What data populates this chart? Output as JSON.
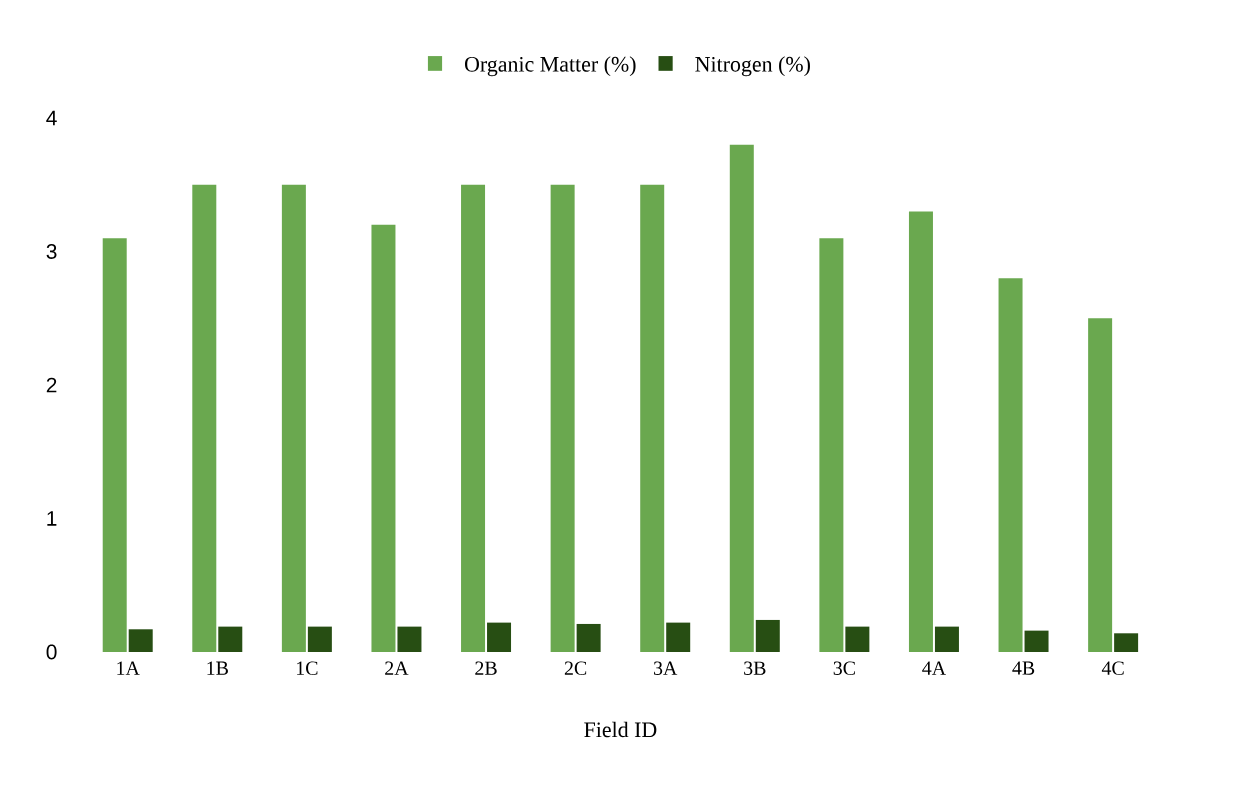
{
  "chart_data": {
    "type": "bar",
    "xlabel": "Field ID",
    "categories": [
      "1A",
      "1B",
      "1C",
      "2A",
      "2B",
      "2C",
      "3A",
      "3B",
      "3C",
      "4A",
      "4B",
      "4C"
    ],
    "series": [
      {
        "name": "Organic Matter (%)",
        "color": "#6aa84f",
        "values": [
          3.1,
          3.5,
          3.5,
          3.2,
          3.5,
          3.5,
          3.5,
          3.8,
          3.1,
          3.3,
          2.8,
          2.5
        ]
      },
      {
        "name": "Nitrogen (%)",
        "color": "#274e13",
        "values": [
          0.17,
          0.19,
          0.19,
          0.19,
          0.22,
          0.21,
          0.22,
          0.24,
          0.19,
          0.19,
          0.16,
          0.14
        ]
      }
    ],
    "ylim": [
      0,
      4
    ],
    "yticks": [
      0,
      1,
      2,
      3,
      4
    ],
    "legend": "top"
  }
}
